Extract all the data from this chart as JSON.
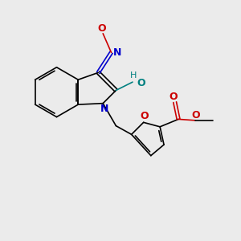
{
  "background_color": "#ebebeb",
  "bond_color": "#000000",
  "N_color": "#0000cc",
  "O_color": "#cc0000",
  "OH_color": "#008080",
  "figsize": [
    3.0,
    3.0
  ],
  "dpi": 100,
  "xlim": [
    0,
    10
  ],
  "ylim": [
    0,
    10
  ]
}
